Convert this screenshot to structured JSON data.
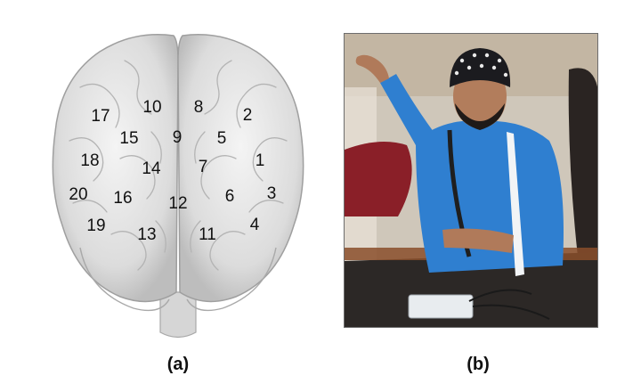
{
  "panel_a": {
    "caption": "(a)",
    "electrodes": [
      {
        "label": "1"
      },
      {
        "label": "2"
      },
      {
        "label": "3"
      },
      {
        "label": "4"
      },
      {
        "label": "5"
      },
      {
        "label": "6"
      },
      {
        "label": "7"
      },
      {
        "label": "8"
      },
      {
        "label": "9"
      },
      {
        "label": "10"
      },
      {
        "label": "11"
      },
      {
        "label": "12"
      },
      {
        "label": "13"
      },
      {
        "label": "14"
      },
      {
        "label": "15"
      },
      {
        "label": "16"
      },
      {
        "label": "17"
      },
      {
        "label": "18"
      },
      {
        "label": "19"
      },
      {
        "label": "20"
      }
    ],
    "colors": {
      "brain": "#e4e4e4",
      "brain_shadow": "#b9b9b9",
      "label": "#111111"
    }
  },
  "panel_b": {
    "caption": "(b)",
    "colors": {
      "shirt": "#2f7fd0",
      "cap": "#1b1b1f",
      "wall": "#c9c1b4",
      "desk": "#2e2a28",
      "device": "#e8ecef"
    }
  }
}
